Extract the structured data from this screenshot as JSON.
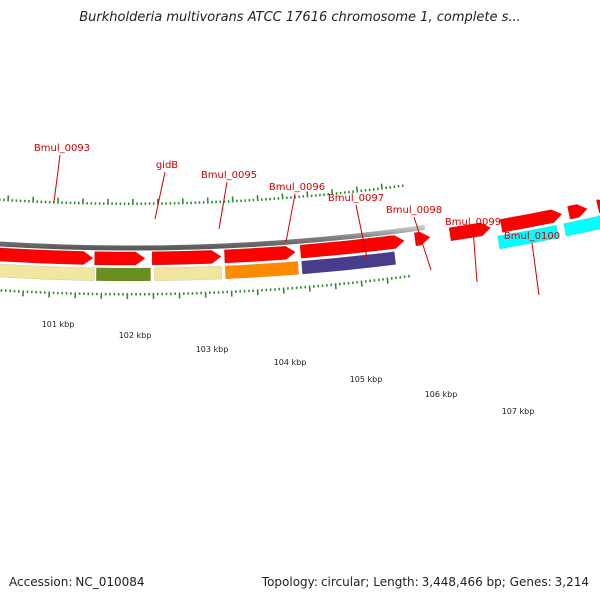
{
  "title": "Burkholderia multivorans ATCC 17616 chromosome 1, complete s...",
  "footer": {
    "accession_label": "Accession:",
    "accession": "NC_010084",
    "topology_label": "Topology:",
    "topology": "circular;",
    "length_label": "Length:",
    "length": "3,448,466 bp;",
    "genes_label": "Genes:",
    "genes": "3,214"
  },
  "genes": [
    {
      "name": "Bmul_0093",
      "color": "#f0e6a0"
    },
    {
      "name": "gidB",
      "color": "#6b8e23"
    },
    {
      "name": "Bmul_0095",
      "color": "#f0e6a0"
    },
    {
      "name": "Bmul_0096",
      "color": "#ff8c00"
    },
    {
      "name": "Bmul_0097",
      "color": "#483d8b"
    },
    {
      "name": "Bmul_0098",
      "color": "#ff0000"
    },
    {
      "name": "Bmul_0099",
      "color": "#ff0000"
    },
    {
      "name": "Bmul_0100",
      "color": "#00ffff"
    }
  ],
  "scale_labels": [
    "101 kbp",
    "102 kbp",
    "103 kbp",
    "104 kbp",
    "105 kbp",
    "106 kbp",
    "107 kbp"
  ],
  "colors": {
    "cds_arrow": "#ff0000",
    "tick": "#2e8b2e",
    "backbone": "#808080"
  }
}
